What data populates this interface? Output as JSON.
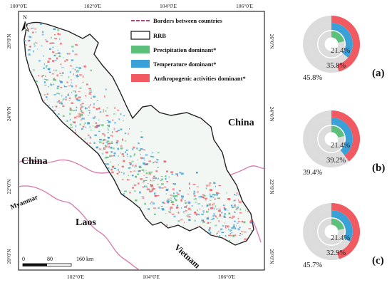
{
  "map": {
    "lon_ticks": [
      "100°0'E",
      "102°0'E",
      "104°0'E",
      "106°0'E"
    ],
    "lat_ticks": [
      "26°0'N",
      "24°0'N",
      "22°0'N",
      "20°0'N"
    ],
    "north_arrow": "N",
    "countries": {
      "china_east": "China",
      "china_west": "China",
      "myanmar": "Myanmar",
      "laos": "Laos",
      "vietnam": "Vietnam"
    },
    "scale_bar": [
      "0",
      "80",
      "160 km"
    ],
    "legend": {
      "borders": "Borders between countries",
      "rrb": "RRB",
      "precipitation": "Precipitation dominant*",
      "temperature": "Temperature dominant*",
      "anthropogenic": "Anthropogenic activities dominant*"
    },
    "colors": {
      "precipitation": "#5cc07a",
      "temperature": "#3aa0d8",
      "anthropogenic": "#f25a62",
      "border": "#d77fb2",
      "ring_track": "#dcdcdc"
    }
  },
  "chart_data": {
    "type": "pie",
    "panels": [
      {
        "label": "(a)",
        "rings": [
          {
            "series": "Precipitation dominant*",
            "value": 21.4,
            "label": "21.4%"
          },
          {
            "series": "Temperature dominant*",
            "value": 35.8,
            "label": "35.8%"
          },
          {
            "series": "Anthropogenic activities dominant*",
            "value": 45.8,
            "label": "45.8%"
          }
        ]
      },
      {
        "label": "(b)",
        "rings": [
          {
            "series": "Precipitation dominant*",
            "value": 21.4,
            "label": "21.4%"
          },
          {
            "series": "Temperature dominant*",
            "value": 39.2,
            "label": "39.2%"
          },
          {
            "series": "Anthropogenic activities dominant*",
            "value": 39.4,
            "label": "39.4%"
          }
        ]
      },
      {
        "label": "(c)",
        "rings": [
          {
            "series": "Precipitation dominant*",
            "value": 21.4,
            "label": "21.4%"
          },
          {
            "series": "Temperature dominant*",
            "value": 32.9,
            "label": "32.9%"
          },
          {
            "series": "Anthropogenic activities dominant*",
            "value": 45.7,
            "label": "45.7%"
          }
        ]
      }
    ]
  }
}
